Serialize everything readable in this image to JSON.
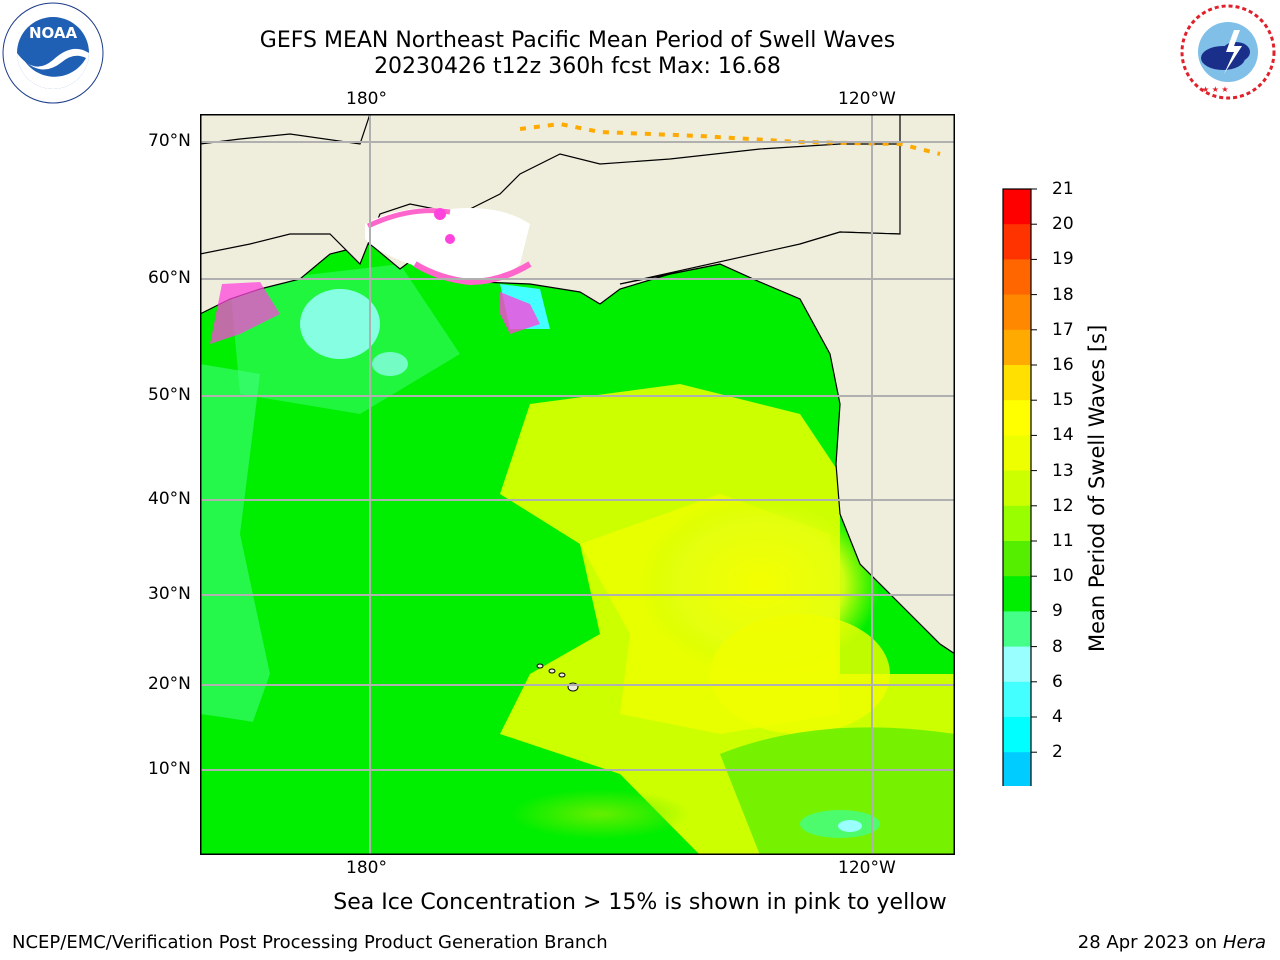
{
  "header": {
    "title_line1": "GEFS MEAN Northeast Pacific Mean Period of Swell Waves",
    "title_line2": "20230426 t12z 360h fcst   Max: 16.68"
  },
  "logos": {
    "left": "NOAA",
    "left_ring_text": "NATIONAL OCEANIC AND ATMOSPHERIC ADMINISTRATION · U.S. DEPARTMENT OF COMMERCE",
    "right_ring_text": "NATIONAL WEATHER SERVICE"
  },
  "map": {
    "top_lon_labels": [
      "180°",
      "120°W"
    ],
    "bottom_lon_labels": [
      "180°",
      "120°W"
    ],
    "lat_labels": [
      "70°N",
      "60°N",
      "50°N",
      "40°N",
      "30°N",
      "20°N",
      "10°N"
    ],
    "colors": {
      "land": "#efeddc",
      "sea_ice_white": "#ffffff",
      "grid": "#b0b0b0"
    }
  },
  "colorbar": {
    "title": "Mean Period of Swell Waves [s]",
    "ticks": [
      "21",
      "20",
      "19",
      "18",
      "17",
      "16",
      "15",
      "14",
      "13",
      "12",
      "11",
      "10",
      "9",
      "8",
      "6",
      "4",
      "2"
    ],
    "colors_top_to_bottom": [
      "#ff0000",
      "#ff3300",
      "#ff6600",
      "#ff8800",
      "#ffaa00",
      "#ffe000",
      "#ffff00",
      "#eeff00",
      "#ccff00",
      "#99ff00",
      "#55ee00",
      "#00ee00",
      "#44ff88",
      "#99ffff",
      "#44ffff",
      "#00ffff",
      "#00ccff",
      "#0077ff"
    ],
    "extend_color": "#0000ff"
  },
  "caption": "Sea Ice Concentration > 15% is shown in pink to yellow",
  "footer": {
    "left": "NCEP/EMC/Verification Post Processing Product Generation Branch",
    "right_date": "28 Apr 2023 on ",
    "right_host": "Hera"
  }
}
